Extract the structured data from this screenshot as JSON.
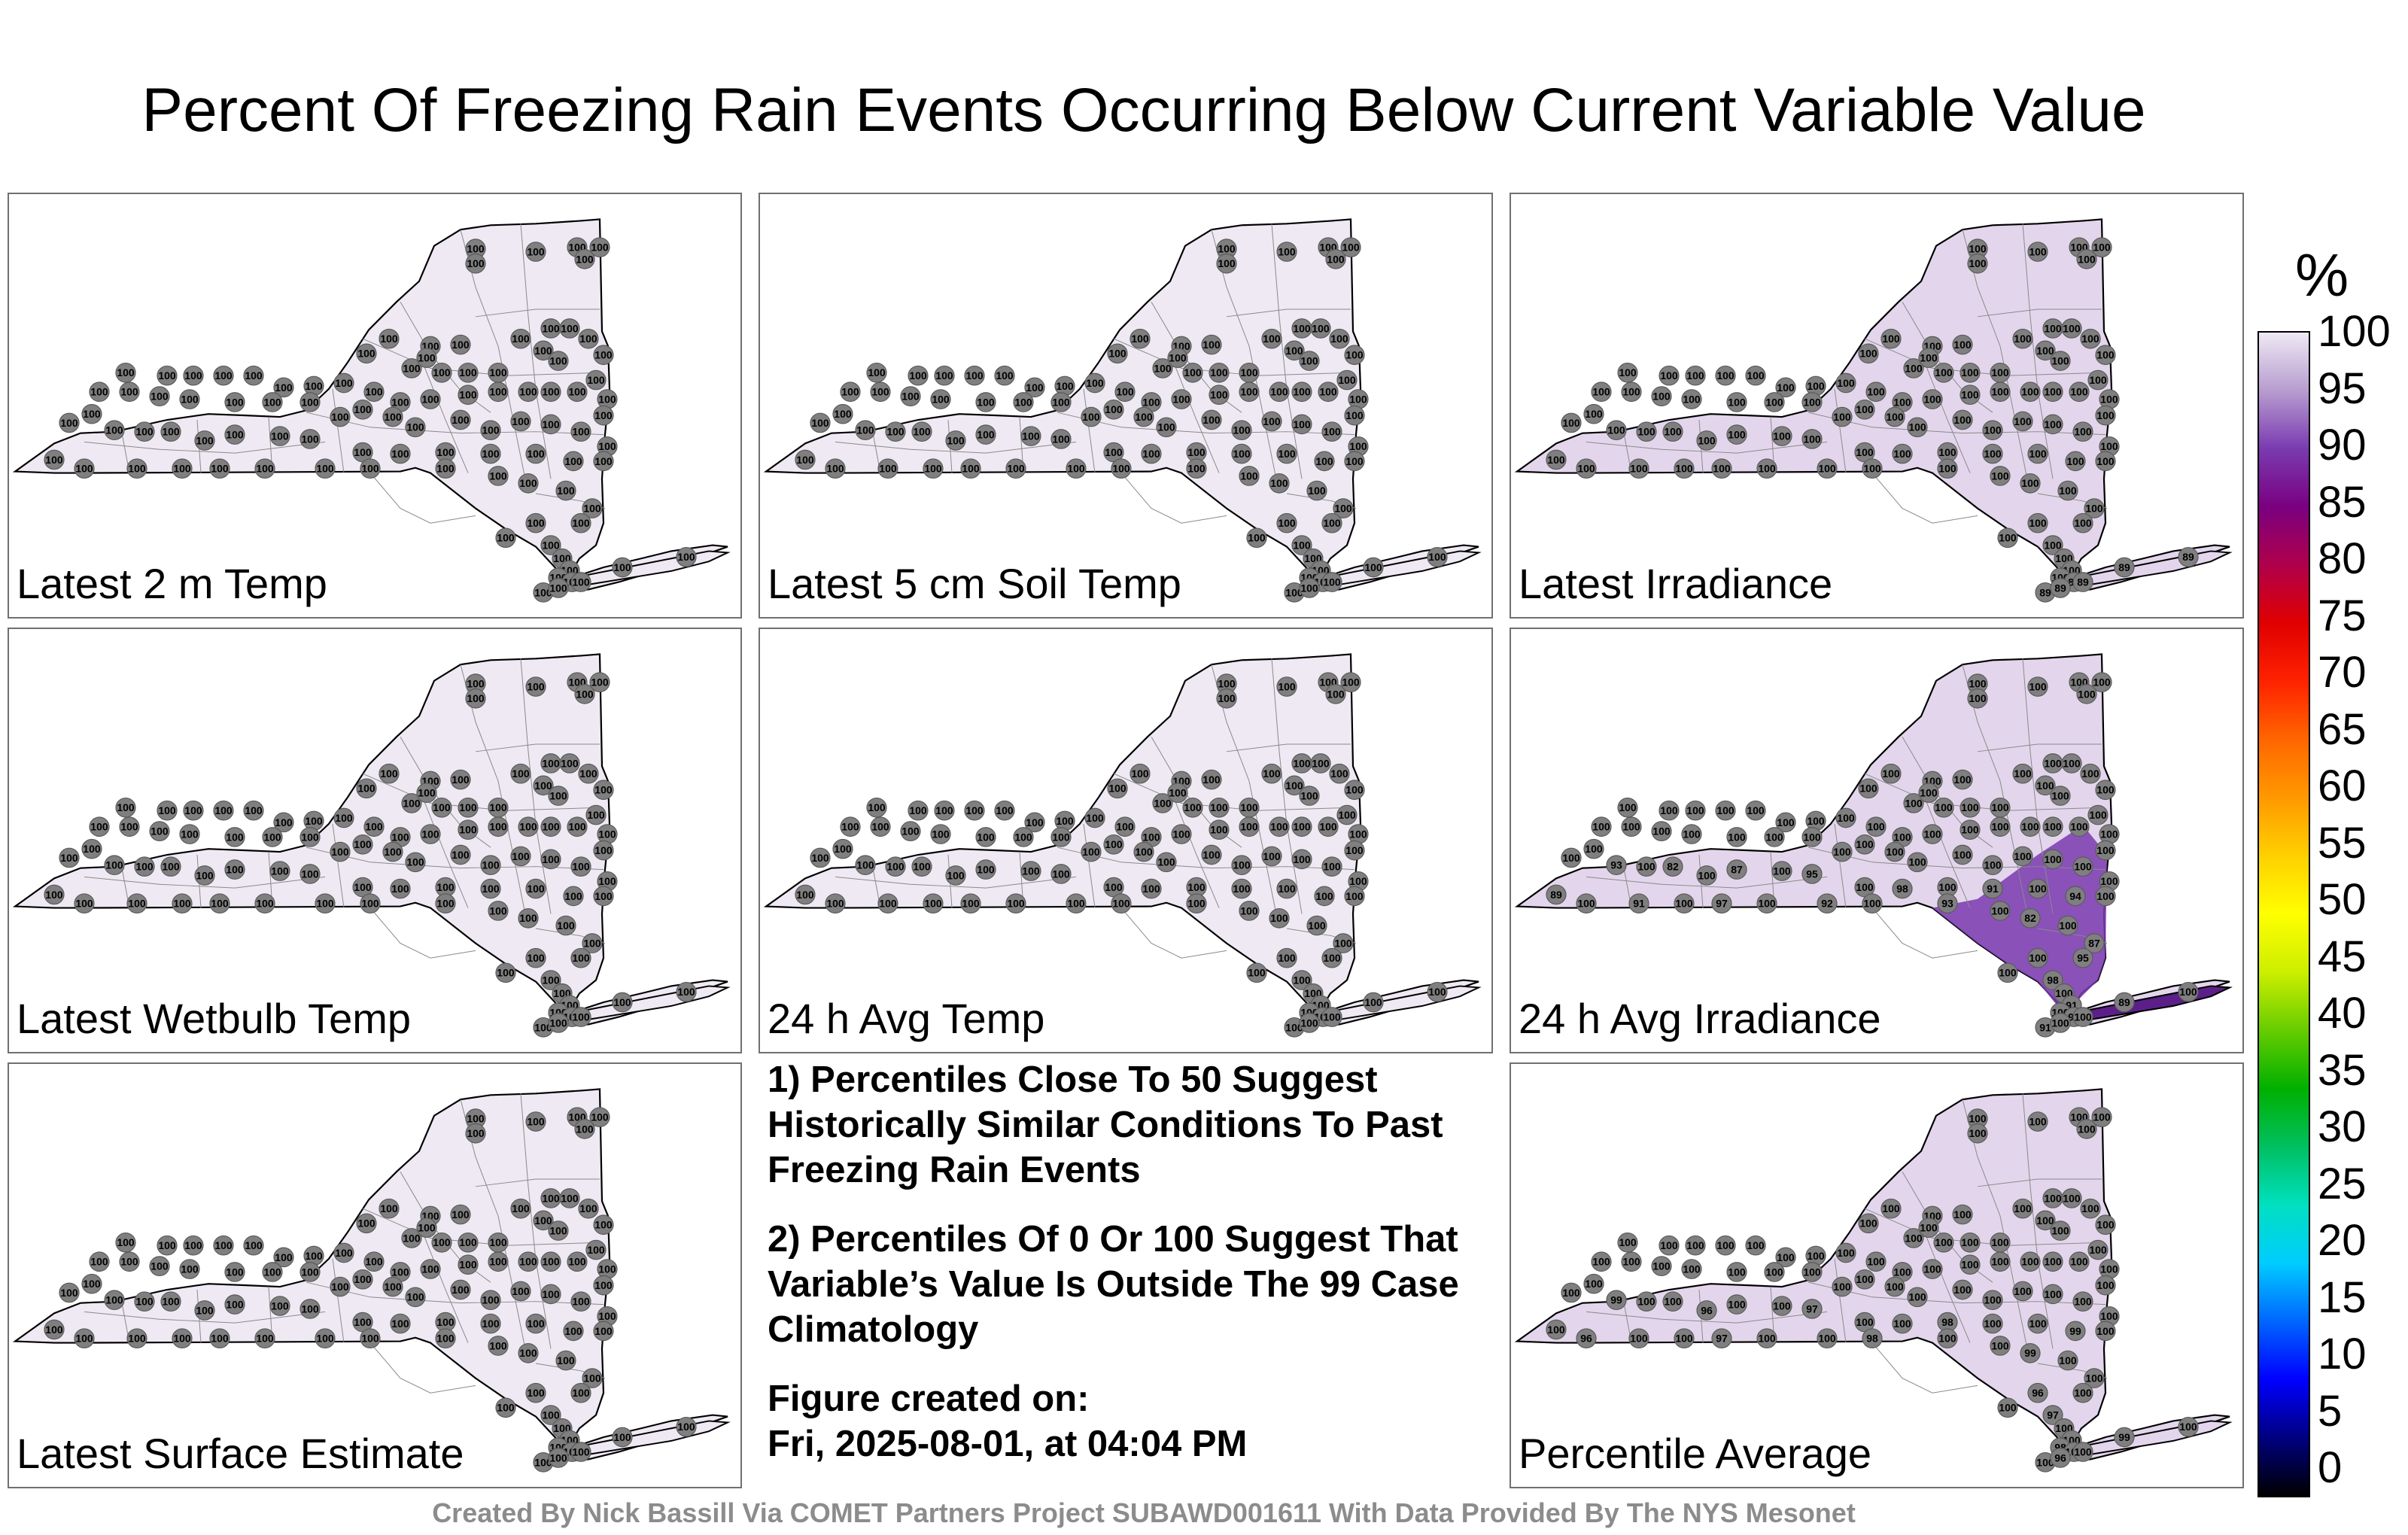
{
  "title": "Percent Of Freezing Rain Events Occurring Below Current Variable Value",
  "panels": [
    {
      "label": "Latest 2 m Temp",
      "fill": "#efe9f4",
      "values": [
        "100"
      ]
    },
    {
      "label": "Latest 5 cm Soil Temp",
      "fill": "#efe9f4",
      "values": [
        "100"
      ]
    },
    {
      "label": "Latest Irradiance",
      "fill": "#e3d6ec",
      "values": [
        "100",
        "89"
      ]
    },
    {
      "label": "Latest Wetbulb Temp",
      "fill": "#efe9f4",
      "values": [
        "100"
      ]
    },
    {
      "label": "24 h Avg Temp",
      "fill": "#efe9f4",
      "values": [
        "100"
      ]
    },
    {
      "label": "24 h Avg Irradiance",
      "fill": "#e3d6ec",
      "values": [
        "100",
        "95",
        "97",
        "98",
        "92",
        "91",
        "93",
        "94",
        "82",
        "89",
        "87",
        "91"
      ]
    },
    {
      "label": "Latest Surface Estimate",
      "fill": "#efe9f4",
      "values": [
        "100"
      ]
    },
    {
      "label": "Percentile Average",
      "fill": "#e3d6ec",
      "values": [
        "100",
        "99",
        "98",
        "97",
        "96"
      ]
    }
  ],
  "notes": {
    "note1": "1) Percentiles Close To 50 Suggest Historically Similar Conditions To Past Freezing Rain Events",
    "note2": "2) Percentiles Of 0 Or 100 Suggest That Variable’s Value Is Outside The 99 Case Climatology",
    "created_label": "Figure created on:",
    "created_value": "Fri, 2025-08-01, at 04:04 PM"
  },
  "colorbar": {
    "unit": "%",
    "ticks": [
      "100",
      "95",
      "90",
      "85",
      "80",
      "75",
      "70",
      "65",
      "60",
      "55",
      "50",
      "45",
      "40",
      "35",
      "30",
      "25",
      "20",
      "15",
      "10",
      "5",
      "0"
    ],
    "colors": [
      "#000000",
      "#000080",
      "#0000ff",
      "#0066ff",
      "#00ccff",
      "#00e0c0",
      "#00c060",
      "#00b000",
      "#66cc00",
      "#ccee00",
      "#ffff00",
      "#ffd000",
      "#ff9900",
      "#ff6600",
      "#ff2200",
      "#e00000",
      "#b0004a",
      "#7a0080",
      "#7a3ab0",
      "#b79cd0",
      "#efe9f4"
    ]
  },
  "credit": "Created By Nick Bassill Via COMET Partners Project SUBAWD001611 With Data Provided By The NYS Mesonet"
}
